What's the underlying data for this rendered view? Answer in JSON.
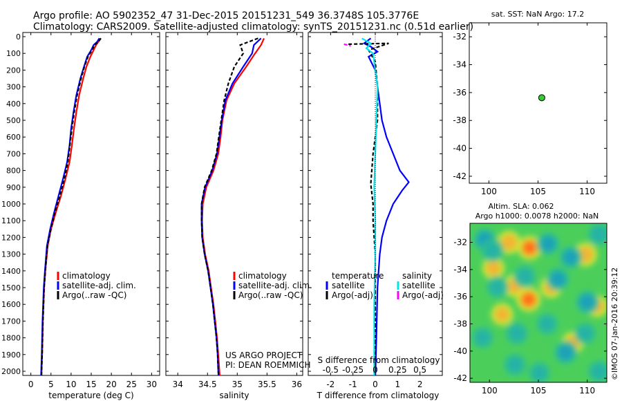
{
  "header": {
    "line1": "Argo profile: AO 5902352_47 31-Dec-2015 20151231_549 36.3748S 105.3776E",
    "line2": "Climatology: CARS2009. Satellite-adjusted climatology: synTS_20151231.nc (0.51d earlier)"
  },
  "colors": {
    "climatology": "#ff0000",
    "satellite": "#0000ff",
    "argo": "#000000",
    "salinity_satellite": "#00e5ee",
    "salinity_argo": "#ff00ff",
    "float_marker": "#33cc33"
  },
  "chart_data": [
    {
      "id": "temperature",
      "type": "line",
      "xlabel": "temperature (deg C)",
      "xlim": [
        -2,
        32
      ],
      "xticks": [
        0,
        5,
        10,
        15,
        20,
        25,
        30
      ],
      "ylim": [
        2060,
        0
      ],
      "yticks": [
        0,
        100,
        200,
        300,
        400,
        500,
        600,
        700,
        800,
        900,
        1000,
        1100,
        1200,
        1300,
        1400,
        1500,
        1600,
        1700,
        1800,
        1900,
        2000
      ],
      "legend": [
        "climatology",
        "satellite-adj. clim.",
        "Argo(..raw -QC)"
      ],
      "series": [
        {
          "name": "climatology",
          "color": "#ff0000",
          "points": [
            [
              17.2,
              10
            ],
            [
              16.8,
              30
            ],
            [
              16.2,
              50
            ],
            [
              15.6,
              80
            ],
            [
              14.8,
              120
            ],
            [
              13.8,
              180
            ],
            [
              13.0,
              250
            ],
            [
              12.0,
              350
            ],
            [
              11.3,
              450
            ],
            [
              10.7,
              550
            ],
            [
              10.2,
              650
            ],
            [
              9.6,
              750
            ],
            [
              8.6,
              850
            ],
            [
              7.5,
              950
            ],
            [
              6.2,
              1050
            ],
            [
              5.0,
              1150
            ],
            [
              4.2,
              1250
            ],
            [
              3.6,
              1400
            ],
            [
              3.3,
              1500
            ],
            [
              3.0,
              1700
            ],
            [
              2.8,
              1900
            ],
            [
              2.6,
              2050
            ]
          ]
        },
        {
          "name": "satellite",
          "color": "#0000ff",
          "points": [
            [
              17.0,
              10
            ],
            [
              16.5,
              30
            ],
            [
              15.6,
              50
            ],
            [
              15.0,
              80
            ],
            [
              14.0,
              120
            ],
            [
              13.2,
              180
            ],
            [
              12.3,
              250
            ],
            [
              11.3,
              350
            ],
            [
              10.6,
              450
            ],
            [
              10.0,
              550
            ],
            [
              9.6,
              650
            ],
            [
              9.0,
              750
            ],
            [
              8.0,
              850
            ],
            [
              6.9,
              950
            ],
            [
              5.8,
              1050
            ],
            [
              4.8,
              1150
            ],
            [
              4.0,
              1250
            ],
            [
              3.5,
              1400
            ],
            [
              3.2,
              1500
            ],
            [
              2.9,
              1700
            ],
            [
              2.7,
              1900
            ],
            [
              2.5,
              2050
            ]
          ]
        },
        {
          "name": "argo",
          "color": "#000000",
          "dashed": true,
          "points": [
            [
              17.4,
              10
            ],
            [
              16.8,
              30
            ],
            [
              15.8,
              50
            ],
            [
              15.2,
              80
            ],
            [
              14.2,
              120
            ],
            [
              13.3,
              180
            ],
            [
              12.5,
              250
            ],
            [
              11.5,
              350
            ],
            [
              10.8,
              450
            ],
            [
              10.2,
              550
            ],
            [
              9.7,
              650
            ],
            [
              9.2,
              750
            ],
            [
              8.3,
              850
            ],
            [
              7.2,
              950
            ],
            [
              6.0,
              1050
            ],
            [
              5.0,
              1150
            ],
            [
              4.1,
              1250
            ],
            [
              3.6,
              1400
            ],
            [
              3.3,
              1500
            ],
            [
              3.0,
              1700
            ],
            [
              2.8,
              1900
            ],
            [
              2.6,
              2050
            ]
          ]
        }
      ]
    },
    {
      "id": "salinity",
      "type": "line",
      "xlabel": "salinity",
      "xlim": [
        33.8,
        36.1
      ],
      "xticks": [
        34,
        34.5,
        35,
        35.5,
        36
      ],
      "ylim": [
        2060,
        0
      ],
      "legend": [
        "climatology",
        "satellite-adj. clim.",
        "Argo(..raw -QC)"
      ],
      "annotation": [
        "US ARGO PROJECT",
        "PI: DEAN ROEMMICH"
      ],
      "series": [
        {
          "name": "climatology",
          "color": "#ff0000",
          "points": [
            [
              35.45,
              10
            ],
            [
              35.4,
              50
            ],
            [
              35.3,
              100
            ],
            [
              35.15,
              180
            ],
            [
              34.95,
              280
            ],
            [
              34.82,
              380
            ],
            [
              34.75,
              500
            ],
            [
              34.72,
              600
            ],
            [
              34.68,
              700
            ],
            [
              34.6,
              800
            ],
            [
              34.48,
              900
            ],
            [
              34.42,
              1000
            ],
            [
              34.41,
              1100
            ],
            [
              34.42,
              1200
            ],
            [
              34.46,
              1300
            ],
            [
              34.52,
              1400
            ],
            [
              34.56,
              1500
            ],
            [
              34.6,
              1600
            ],
            [
              34.63,
              1700
            ],
            [
              34.66,
              1800
            ],
            [
              34.68,
              1900
            ],
            [
              34.7,
              2000
            ],
            [
              34.71,
              2050
            ]
          ]
        },
        {
          "name": "satellite",
          "color": "#0000ff",
          "points": [
            [
              35.4,
              10
            ],
            [
              35.28,
              50
            ],
            [
              35.25,
              100
            ],
            [
              35.1,
              180
            ],
            [
              34.92,
              280
            ],
            [
              34.8,
              380
            ],
            [
              34.74,
              500
            ],
            [
              34.7,
              600
            ],
            [
              34.66,
              700
            ],
            [
              34.58,
              800
            ],
            [
              34.46,
              900
            ],
            [
              34.4,
              1000
            ],
            [
              34.4,
              1100
            ],
            [
              34.41,
              1200
            ],
            [
              34.45,
              1300
            ],
            [
              34.51,
              1400
            ],
            [
              34.55,
              1500
            ],
            [
              34.59,
              1600
            ],
            [
              34.62,
              1700
            ],
            [
              34.65,
              1800
            ],
            [
              34.67,
              1900
            ],
            [
              34.68,
              2000
            ],
            [
              34.69,
              2050
            ]
          ]
        },
        {
          "name": "argo",
          "color": "#000000",
          "dashed": true,
          "points": [
            [
              35.35,
              10
            ],
            [
              35.05,
              50
            ],
            [
              35.1,
              100
            ],
            [
              34.95,
              180
            ],
            [
              34.85,
              280
            ],
            [
              34.78,
              380
            ],
            [
              34.73,
              500
            ],
            [
              34.69,
              600
            ],
            [
              34.65,
              700
            ],
            [
              34.57,
              800
            ],
            [
              34.45,
              900
            ],
            [
              34.4,
              1000
            ],
            [
              34.4,
              1100
            ],
            [
              34.41,
              1200
            ],
            [
              34.45,
              1300
            ],
            [
              34.51,
              1400
            ],
            [
              34.55,
              1500
            ],
            [
              34.59,
              1600
            ],
            [
              34.62,
              1700
            ],
            [
              34.65,
              1800
            ],
            [
              34.67,
              1900
            ],
            [
              34.68,
              2000
            ],
            [
              34.69,
              2050
            ]
          ]
        }
      ]
    },
    {
      "id": "difference",
      "type": "line",
      "xlabel": "T difference from climatology",
      "xlabel_top": "S difference from climatology",
      "xlim": [
        -3,
        3
      ],
      "xticks": [
        -2,
        -1,
        0,
        1,
        2
      ],
      "xticks_s": [
        "-0.5",
        "-0.25",
        "0",
        "0.25",
        "0.5"
      ],
      "xticks_s_pos": [
        -2,
        -1,
        0,
        1,
        2
      ],
      "ylim": [
        2060,
        0
      ],
      "legend": {
        "temperature_title": "temperature",
        "salinity_title": "salinity",
        "temperature_items": [
          "satellite",
          "Argo(-adj)"
        ],
        "salinity_items": [
          "satellite",
          "Argo(-adj)"
        ]
      },
      "series": [
        {
          "name": "T satellite",
          "color": "#0000ff",
          "points": [
            [
              -0.2,
              10
            ],
            [
              -0.5,
              40
            ],
            [
              -0.2,
              60
            ],
            [
              0.1,
              90
            ],
            [
              -0.3,
              120
            ],
            [
              0.0,
              200
            ],
            [
              0.1,
              300
            ],
            [
              0.2,
              400
            ],
            [
              0.3,
              500
            ],
            [
              0.5,
              600
            ],
            [
              0.8,
              700
            ],
            [
              1.1,
              800
            ],
            [
              1.5,
              870
            ],
            [
              1.2,
              920
            ],
            [
              0.8,
              1000
            ],
            [
              0.5,
              1100
            ],
            [
              0.3,
              1200
            ],
            [
              0.2,
              1300
            ],
            [
              0.1,
              1500
            ],
            [
              0.05,
              1800
            ],
            [
              0.0,
              2050
            ]
          ]
        },
        {
          "name": "T argo",
          "color": "#000000",
          "dashed": true,
          "points": [
            [
              -1.2,
              45
            ],
            [
              0.6,
              40
            ],
            [
              -0.3,
              80
            ],
            [
              0.0,
              150
            ],
            [
              0.1,
              300
            ],
            [
              0.1,
              500
            ],
            [
              -0.1,
              700
            ],
            [
              -0.2,
              880
            ],
            [
              -0.1,
              1000
            ],
            [
              -0.1,
              1100
            ],
            [
              0.0,
              1300
            ],
            [
              0.0,
              1600
            ],
            [
              0.0,
              2000
            ]
          ]
        },
        {
          "name": "S satellite",
          "color": "#00e5ee",
          "points": [
            [
              -0.6,
              10
            ],
            [
              -0.2,
              40
            ],
            [
              -0.4,
              70
            ],
            [
              -0.1,
              100
            ],
            [
              0.0,
              200
            ],
            [
              0.1,
              300
            ],
            [
              0.05,
              500
            ],
            [
              0.0,
              700
            ],
            [
              -0.05,
              900
            ],
            [
              0.0,
              1100
            ],
            [
              0.0,
              1300
            ],
            [
              -0.05,
              1600
            ],
            [
              -0.05,
              1900
            ],
            [
              -0.05,
              2050
            ]
          ]
        },
        {
          "name": "S argo",
          "color": "#ff00ff",
          "dashed": true,
          "points": [
            [
              -1.4,
              45
            ],
            [
              -1.1,
              55
            ]
          ]
        }
      ]
    },
    {
      "id": "location",
      "type": "scatter",
      "title": "sat. SST: NaN Argo: 17.2",
      "xlim": [
        98,
        112
      ],
      "xticks": [
        100,
        105,
        110
      ],
      "ylim": [
        -42.5,
        -31
      ],
      "yticks": [
        -32,
        -34,
        -36,
        -38,
        -40,
        -42
      ],
      "points": [
        [
          105.38,
          -36.37
        ]
      ]
    },
    {
      "id": "sla",
      "type": "heatmap",
      "title1": "Altim. SLA: 0.062",
      "title2": "Argo h1000: 0.0078 h2000: NaN",
      "xlim": [
        98,
        112
      ],
      "xticks": [
        100,
        105,
        110
      ],
      "ylim": [
        -42.3,
        -30.6
      ],
      "yticks": [
        -32,
        -34,
        -36,
        -38,
        -40,
        -42
      ],
      "background_color": "#4ccf5a",
      "blobs": [
        {
          "lon": 102.0,
          "lat": -32.0,
          "value": 0.8
        },
        {
          "lon": 104.1,
          "lat": -32.4,
          "value": 0.95
        },
        {
          "lon": 109.8,
          "lat": -32.9,
          "value": 0.85
        },
        {
          "lon": 100.4,
          "lat": -33.9,
          "value": 0.6
        },
        {
          "lon": 102.6,
          "lat": -35.2,
          "value": 0.7
        },
        {
          "lon": 104.0,
          "lat": -36.2,
          "value": 1.0
        },
        {
          "lon": 101.3,
          "lat": -37.3,
          "value": 0.6
        },
        {
          "lon": 108.5,
          "lat": -39.4,
          "value": 0.55
        },
        {
          "lon": 106.3,
          "lat": -35.3,
          "value": 0.5
        },
        {
          "lon": 111.0,
          "lat": -36.7,
          "value": 0.5
        },
        {
          "lon": 99.5,
          "lat": -31.8,
          "value": -0.8
        },
        {
          "lon": 100.3,
          "lat": -32.6,
          "value": -0.7
        },
        {
          "lon": 106.0,
          "lat": -32.1,
          "value": -0.8
        },
        {
          "lon": 108.3,
          "lat": -33.1,
          "value": -0.8
        },
        {
          "lon": 111.2,
          "lat": -31.4,
          "value": -0.7
        },
        {
          "lon": 103.6,
          "lat": -34.5,
          "value": -0.7
        },
        {
          "lon": 107.0,
          "lat": -34.7,
          "value": -0.85
        },
        {
          "lon": 110.0,
          "lat": -36.4,
          "value": -0.9
        },
        {
          "lon": 100.8,
          "lat": -35.3,
          "value": -0.6
        },
        {
          "lon": 102.8,
          "lat": -38.7,
          "value": -0.75
        },
        {
          "lon": 105.9,
          "lat": -38.0,
          "value": -0.6
        },
        {
          "lon": 99.3,
          "lat": -39.0,
          "value": -0.6
        },
        {
          "lon": 107.8,
          "lat": -40.1,
          "value": -0.9
        },
        {
          "lon": 102.6,
          "lat": -41.0,
          "value": -0.7
        },
        {
          "lon": 111.2,
          "lat": -41.5,
          "value": -0.7
        },
        {
          "lon": 105.1,
          "lat": -41.6,
          "value": -0.6
        },
        {
          "lon": 109.8,
          "lat": -38.7,
          "value": -0.6
        }
      ]
    }
  ],
  "watermark": "©IMOS 07-Jan-2016 20:39:12"
}
